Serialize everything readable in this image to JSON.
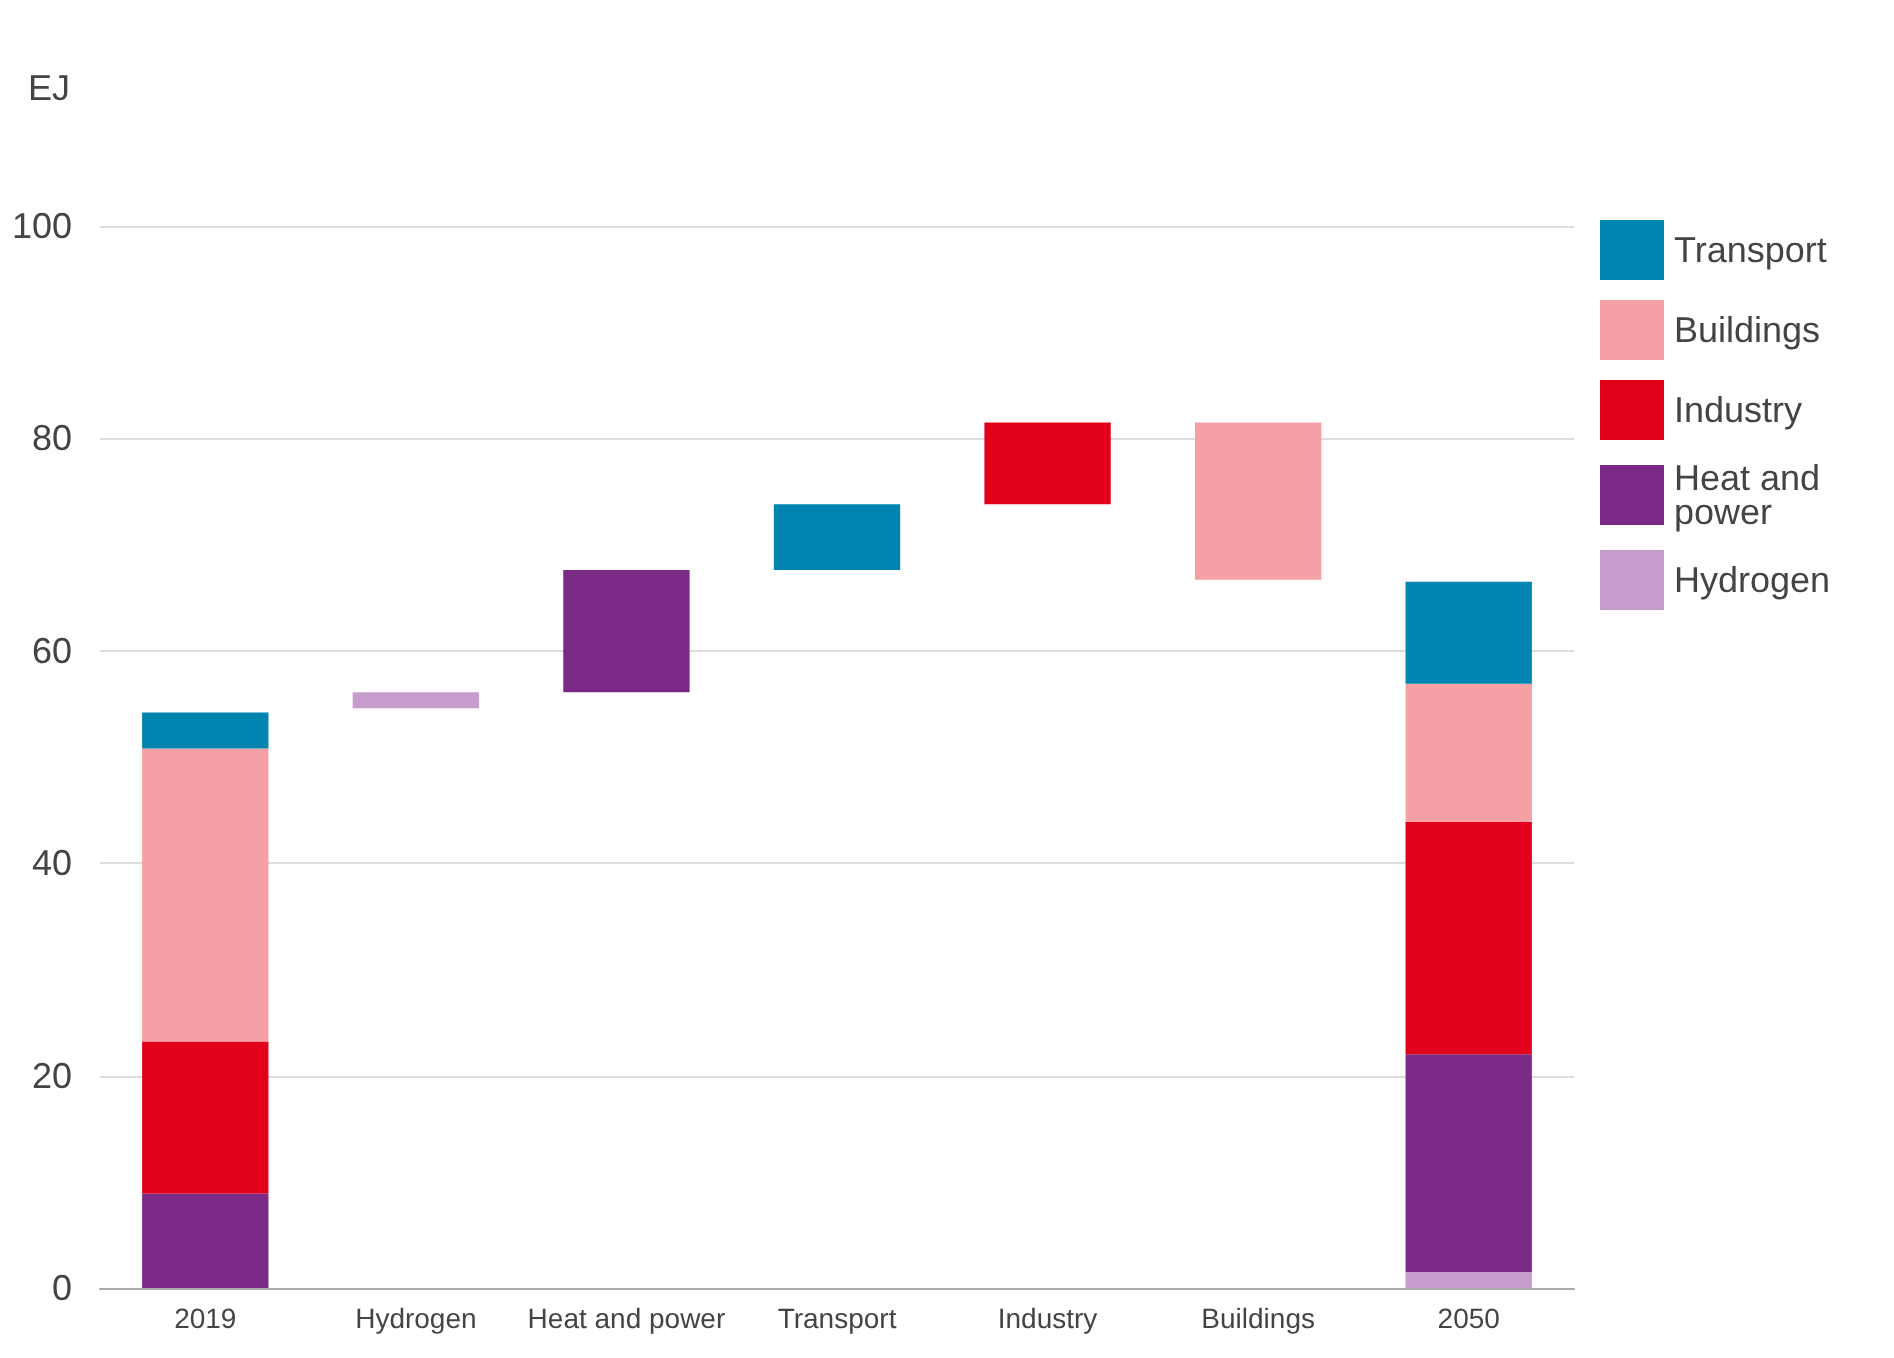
{
  "chart_data": {
    "type": "bar",
    "stacked": true,
    "ylabel": "EJ",
    "categories": [
      "2019",
      "Hydrogen",
      "Heat and power",
      "Transport",
      "Industry",
      "Buildings",
      "2050"
    ],
    "series": [
      {
        "name": "Hydrogen",
        "color": "#c89ccc",
        "values": [
          null,
          1.5,
          null,
          null,
          null,
          null,
          1.5
        ],
        "base": [
          null,
          54.6,
          null,
          null,
          null,
          null,
          null
        ]
      },
      {
        "name": "Heat and power",
        "color": "#7b2b87",
        "values": [
          8.9,
          null,
          11.5,
          null,
          null,
          null,
          20.5
        ],
        "base": [
          null,
          null,
          56.1,
          null,
          null,
          null,
          null
        ]
      },
      {
        "name": "Industry",
        "color": "#e2001a",
        "values": [
          14.3,
          null,
          null,
          null,
          7.7,
          null,
          21.9
        ],
        "base": [
          null,
          null,
          null,
          null,
          73.8,
          null,
          null
        ]
      },
      {
        "name": "Buildings",
        "color": "#f4a0a4",
        "values": [
          27.6,
          null,
          null,
          null,
          null,
          14.8,
          13.0
        ],
        "base": [
          null,
          null,
          null,
          null,
          null,
          66.7,
          null
        ]
      },
      {
        "name": "Transport",
        "color": "#0085b0",
        "values": [
          3.4,
          null,
          null,
          6.2,
          null,
          null,
          9.6
        ],
        "base": [
          null,
          null,
          null,
          67.6,
          null,
          null,
          null
        ]
      }
    ],
    "ylim": [
      0,
      100
    ],
    "yticks": [
      0,
      20,
      40,
      60,
      80,
      100
    ],
    "grid": "y",
    "legend": "top right"
  }
}
